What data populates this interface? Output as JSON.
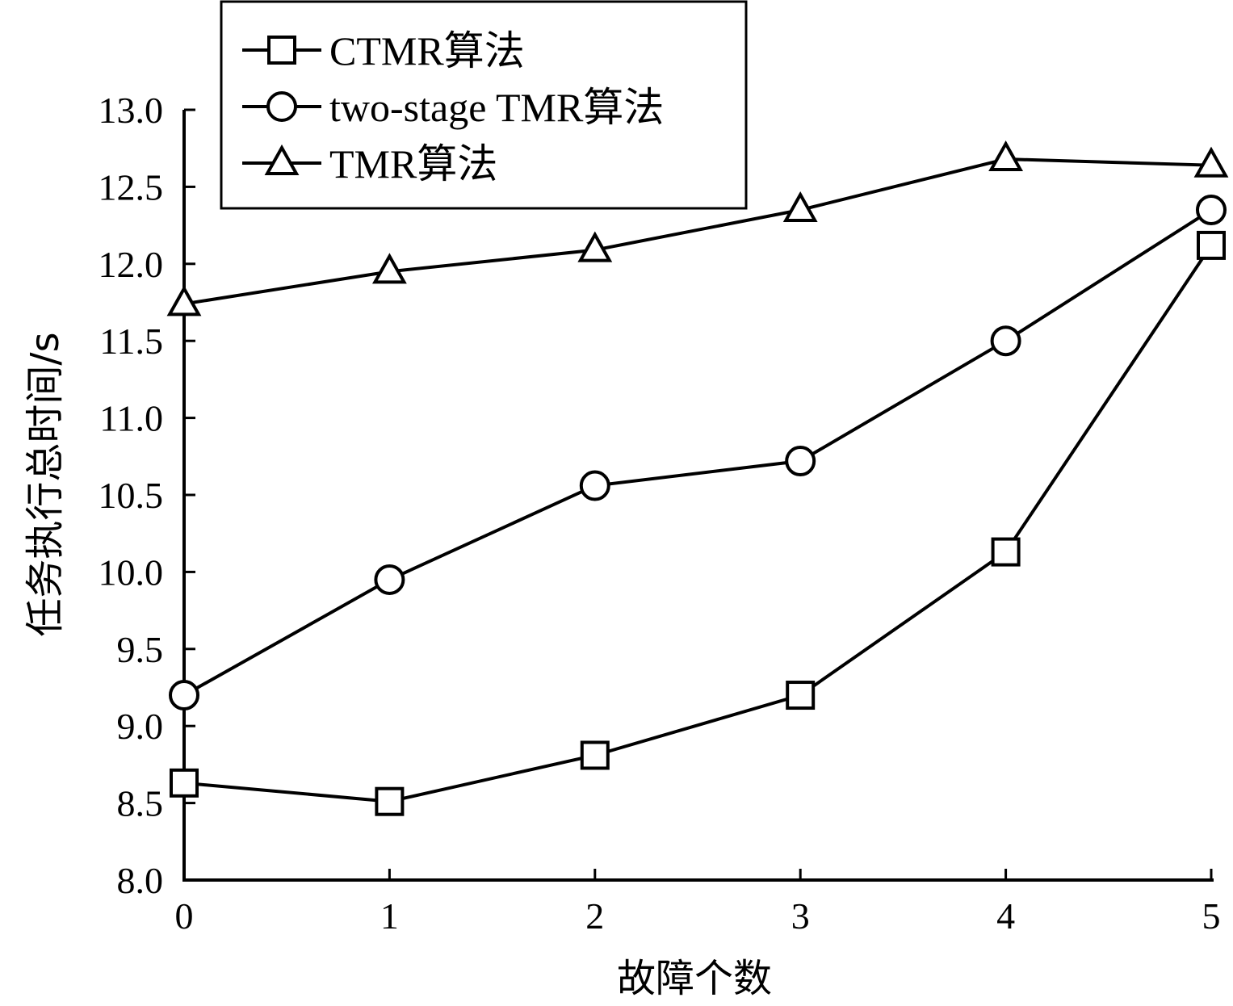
{
  "chart_data": {
    "type": "line",
    "xlabel": "故障个数",
    "ylabel": "任务执行总时间/s",
    "x": [
      0,
      1,
      2,
      3,
      4,
      5
    ],
    "xticks": [
      "0",
      "1",
      "2",
      "3",
      "4",
      "5"
    ],
    "xlim": [
      0,
      5
    ],
    "ylim": [
      8.0,
      13.0
    ],
    "yticks": [
      "8.0",
      "8.5",
      "9.0",
      "9.5",
      "10.0",
      "10.5",
      "11.0",
      "11.5",
      "12.0",
      "12.5",
      "13.0"
    ],
    "legend_position": "top-left",
    "grid": false,
    "series": [
      {
        "name": "CTMR算法",
        "marker": "square",
        "values": [
          8.63,
          8.51,
          8.81,
          9.2,
          10.13,
          12.12
        ]
      },
      {
        "name": "two-stage TMR算法",
        "marker": "circle",
        "values": [
          9.2,
          9.95,
          10.56,
          10.72,
          11.5,
          12.35
        ]
      },
      {
        "name": "TMR算法",
        "marker": "triangle",
        "values": [
          11.74,
          11.95,
          12.09,
          12.35,
          12.68,
          12.64
        ]
      }
    ]
  }
}
